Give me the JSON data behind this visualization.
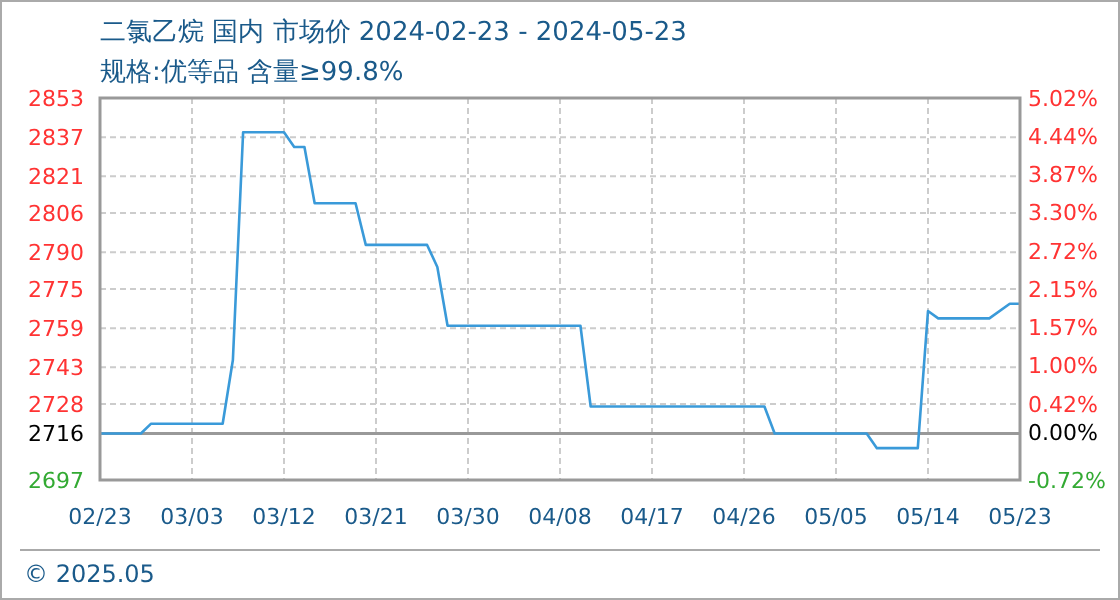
{
  "chart_data": {
    "type": "line",
    "title": "二氯乙烷 国内 市场价 2024-02-23 - 2024-05-23",
    "subtitle": "规格:优等品 含量≥99.8%",
    "annotations": [
      "© 2025.05"
    ],
    "x": [
      "2024-02-23",
      "2024-02-27",
      "2024-02-28",
      "2024-03-06",
      "2024-03-07",
      "2024-03-08",
      "2024-03-12",
      "2024-03-13",
      "2024-03-14",
      "2024-03-15",
      "2024-03-19",
      "2024-03-20",
      "2024-03-26",
      "2024-03-27",
      "2024-03-28",
      "2024-04-10",
      "2024-04-11",
      "2024-04-28",
      "2024-04-29",
      "2024-05-08",
      "2024-05-09",
      "2024-05-13",
      "2024-05-14",
      "2024-05-15",
      "2024-05-20",
      "2024-05-22",
      "2024-05-23"
    ],
    "series": [
      {
        "color": "#3a9ad9",
        "values": [
          2716,
          2716,
          2720,
          2720,
          2746,
          2839,
          2839,
          2833,
          2833,
          2810,
          2810,
          2793,
          2793,
          2784,
          2760,
          2760,
          2727,
          2727,
          2716,
          2716,
          2710,
          2710,
          2766,
          2763,
          2763,
          2769,
          2769
        ]
      }
    ],
    "xlim": [
      "2024-02-23",
      "2024-05-23"
    ],
    "xticks": [
      {
        "value": "2024-02-23",
        "label": "02/23"
      },
      {
        "value": "2024-03-03",
        "label": "03/03"
      },
      {
        "value": "2024-03-12",
        "label": "03/12"
      },
      {
        "value": "2024-03-21",
        "label": "03/21"
      },
      {
        "value": "2024-03-30",
        "label": "03/30"
      },
      {
        "value": "2024-04-08",
        "label": "04/08"
      },
      {
        "value": "2024-04-17",
        "label": "04/17"
      },
      {
        "value": "2024-04-26",
        "label": "04/26"
      },
      {
        "value": "2024-05-05",
        "label": "05/05"
      },
      {
        "value": "2024-05-14",
        "label": "05/14"
      },
      {
        "value": "2024-05-23",
        "label": "05/23"
      }
    ],
    "ylim": [
      2697,
      2853
    ],
    "yticks": [
      2697,
      2716,
      2728,
      2743,
      2759,
      2775,
      2790,
      2806,
      2821,
      2837,
      2853
    ],
    "y2lim": [
      -0.72,
      5.02
    ],
    "y2ticks": [
      {
        "value": -0.72,
        "label": "-0.72%"
      },
      {
        "value": 0,
        "label": "0.00%"
      },
      {
        "value": 0.42,
        "label": "0.42%"
      },
      {
        "value": 1.0,
        "label": "1.00%"
      },
      {
        "value": 1.57,
        "label": "1.57%"
      },
      {
        "value": 2.15,
        "label": "2.15%"
      },
      {
        "value": 2.72,
        "label": "2.72%"
      },
      {
        "value": 3.3,
        "label": "3.30%"
      },
      {
        "value": 3.87,
        "label": "3.87%"
      },
      {
        "value": 4.44,
        "label": "4.44%"
      },
      {
        "value": 5.02,
        "label": "5.02%"
      }
    ],
    "ref_lines": [
      {
        "axis": "y",
        "value": 2716,
        "color": "#999999"
      }
    ],
    "grid": true,
    "marker": "none",
    "line_style": "solid"
  }
}
